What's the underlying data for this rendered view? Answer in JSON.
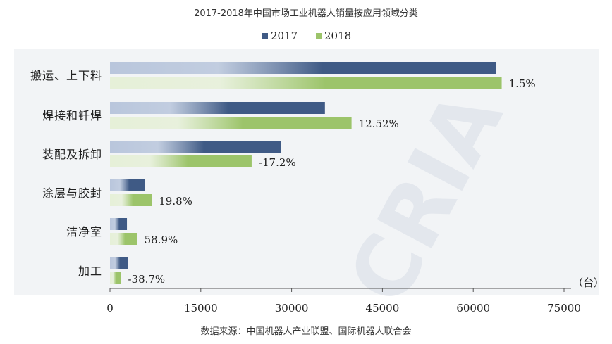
{
  "chart_data": {
    "type": "bar",
    "orientation": "horizontal",
    "title": "2017-2018年中国市场工业机器人销量按应用领域分类",
    "source": "数据来源：中国机器人产业联盟、国际机器人联合会",
    "unit_label": "（台）",
    "categories": [
      "搬运、上下料",
      "焊接和钎焊",
      "装配及拆卸",
      "涂层与胶封",
      "洁净室",
      "加工"
    ],
    "series": [
      {
        "name": "2017",
        "values": [
          63800,
          35500,
          28200,
          5800,
          2800,
          3000
        ]
      },
      {
        "name": "2018",
        "values": [
          64700,
          39900,
          23400,
          6900,
          4500,
          1800
        ]
      }
    ],
    "growth_labels": [
      "1.5%",
      "12.52%",
      "-17.2%",
      "19.8%",
      "58.9%",
      "-38.7%"
    ],
    "x_ticks": [
      "0",
      "15000",
      "30000",
      "45000",
      "60000",
      "75000"
    ],
    "xlim": [
      0,
      75000
    ],
    "legend_position": "top-center",
    "watermark": "CRIA China Robot Industry Alliance",
    "colors": {
      "series_2017": "#3f5a85",
      "series_2017_light": "#ffffff",
      "series_2018": "#9cc46a",
      "series_2018_light": "#ffffff",
      "panel": "#f2f4f6",
      "watermark": "#d7dde5"
    }
  }
}
